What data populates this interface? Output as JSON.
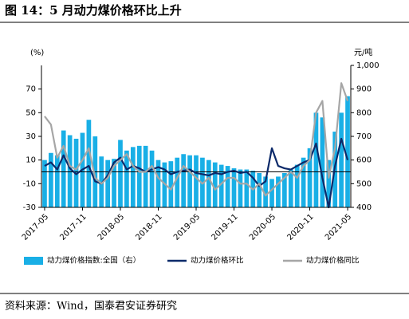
{
  "chart_data": {
    "type": "bar_line_combo",
    "title": "图 14：5 月动力煤价格环比上升",
    "source": "资料来源：Wind，国泰君安证券研究",
    "ylabel": "(%)",
    "y2label": "元/吨",
    "categories": [
      "2017-05",
      null,
      null,
      null,
      null,
      null,
      "2017-11",
      null,
      null,
      null,
      null,
      null,
      "2018-05",
      null,
      null,
      null,
      null,
      null,
      "2018-11",
      null,
      null,
      null,
      null,
      null,
      "2019-05",
      null,
      null,
      null,
      null,
      null,
      "2019-11",
      null,
      null,
      null,
      null,
      null,
      "2020-05",
      null,
      null,
      null,
      null,
      null,
      "2020-11",
      null,
      null,
      null,
      null,
      null,
      "2021-05"
    ],
    "ylim": [
      -30,
      90
    ],
    "yticks": [
      -30,
      -10,
      10,
      30,
      50,
      70
    ],
    "y2lim": [
      400,
      1000
    ],
    "y2ticks": [
      400,
      500,
      600,
      700,
      800,
      900,
      {
        "value": 1000,
        "label": "1,000"
      }
    ],
    "series": [
      {
        "name": "动力煤价格指数:全国（右）",
        "type": "bar",
        "axis": "y2",
        "color": "#19afe6",
        "values": [
          600,
          630,
          620,
          725,
          705,
          690,
          715,
          770,
          700,
          615,
          600,
          605,
          685,
          640,
          655,
          660,
          660,
          640,
          600,
          590,
          595,
          610,
          625,
          620,
          620,
          610,
          600,
          590,
          580,
          575,
          565,
          560,
          560,
          555,
          545,
          530,
          520,
          530,
          545,
          560,
          580,
          610,
          650,
          800,
          780,
          600,
          720,
          800,
          870
        ]
      },
      {
        "name": "动力煤价格环比",
        "type": "line",
        "color": "#0c2a6a",
        "values": [
          5,
          8,
          2,
          14,
          3,
          -2,
          2,
          5,
          -8,
          -10,
          -3,
          8,
          12,
          2,
          5,
          3,
          0,
          2,
          4,
          2,
          -2,
          0,
          1,
          2,
          -1,
          -2,
          -3,
          -1,
          -2,
          0,
          1,
          -1,
          0,
          -5,
          -12,
          -8,
          20,
          5,
          3,
          2,
          5,
          8,
          10,
          24,
          -5,
          -30,
          5,
          28,
          10
        ]
      },
      {
        "name": "动力煤价格同比",
        "type": "line",
        "color": "#a6a6a6",
        "values": [
          47,
          40,
          12,
          22,
          5,
          2,
          10,
          20,
          -5,
          -10,
          -5,
          5,
          10,
          15,
          5,
          0,
          0,
          5,
          -5,
          -10,
          -15,
          -5,
          5,
          0,
          -5,
          -10,
          -5,
          -15,
          -10,
          -5,
          -5,
          -10,
          -10,
          -15,
          -10,
          -20,
          -15,
          -10,
          -5,
          0,
          -5,
          5,
          10,
          50,
          60,
          -5,
          20,
          75,
          60
        ]
      }
    ]
  }
}
